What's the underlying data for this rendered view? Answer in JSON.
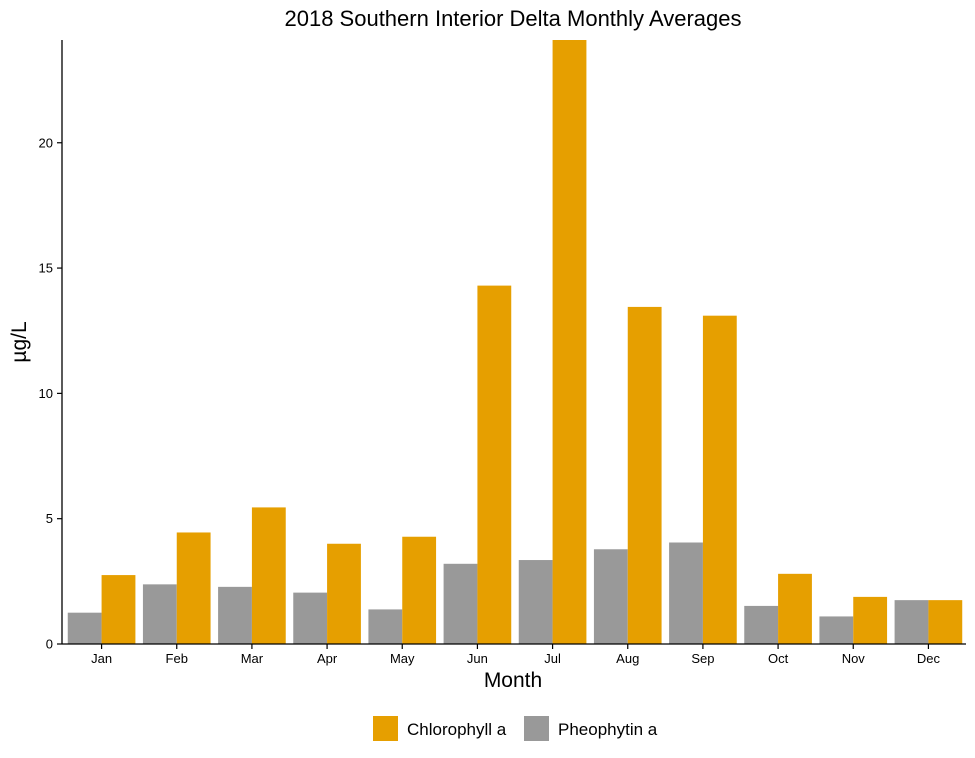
{
  "chart_data": {
    "type": "bar",
    "title": "2018 Southern Interior Delta Monthly Averages",
    "xlabel": "Month",
    "ylabel": "µg/L",
    "categories": [
      "Jan",
      "Feb",
      "Mar",
      "Apr",
      "May",
      "Jun",
      "Jul",
      "Aug",
      "Sep",
      "Oct",
      "Nov",
      "Dec"
    ],
    "series": [
      {
        "name": "Pheophytin a",
        "color": "#999999",
        "values": [
          1.25,
          2.38,
          2.28,
          2.05,
          1.38,
          3.2,
          3.35,
          3.78,
          4.05,
          1.52,
          1.1,
          1.75
        ]
      },
      {
        "name": "Chlorophyll a",
        "color": "#E69F00",
        "values": [
          2.75,
          4.45,
          5.45,
          4.0,
          4.28,
          14.3,
          24.1,
          13.45,
          13.1,
          2.8,
          1.88,
          1.75
        ]
      }
    ],
    "ylim": [
      0,
      24.1
    ],
    "yticks": [
      0,
      5,
      10,
      15,
      20
    ],
    "grid": false,
    "legend": {
      "position": "bottom",
      "order": [
        "Chlorophyll a",
        "Pheophytin a"
      ]
    }
  }
}
